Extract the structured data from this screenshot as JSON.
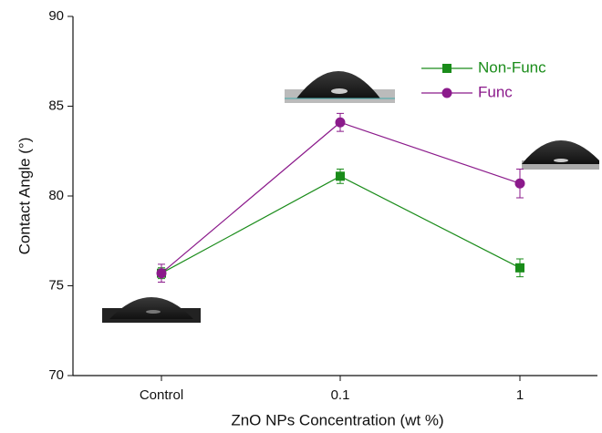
{
  "chart_data": {
    "type": "line",
    "x_label": "ZnO NPs Concentration (wt %)",
    "y_label": "Contact Angle (°)",
    "categories": [
      "Control",
      "0.1",
      "1"
    ],
    "series": [
      {
        "name": "Non-Func",
        "color": "#1a8c1a",
        "marker": "square",
        "values": [
          75.7,
          81.1,
          76.0
        ],
        "errors": [
          0.3,
          0.4,
          0.5
        ]
      },
      {
        "name": "Func",
        "color": "#8b1a8b",
        "marker": "circle",
        "values": [
          75.7,
          84.1,
          80.7
        ],
        "errors": [
          0.5,
          0.5,
          0.8
        ]
      }
    ],
    "ylim": [
      70,
      90
    ],
    "yticks": [
      70,
      75,
      80,
      85,
      90
    ],
    "legend": "upper right"
  }
}
